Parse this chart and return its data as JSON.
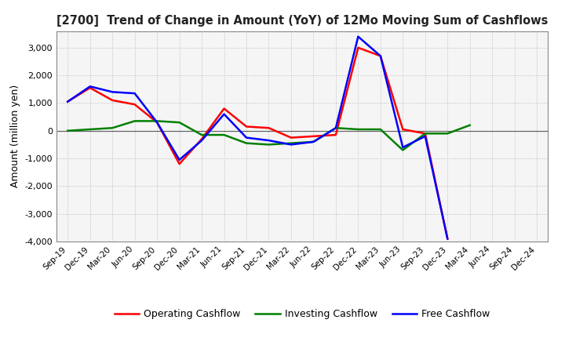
{
  "title": "[2700]  Trend of Change in Amount (YoY) of 12Mo Moving Sum of Cashflows",
  "ylabel": "Amount (million yen)",
  "x_labels": [
    "Sep-19",
    "Dec-19",
    "Mar-20",
    "Jun-20",
    "Sep-20",
    "Dec-20",
    "Mar-21",
    "Jun-21",
    "Sep-21",
    "Dec-21",
    "Mar-22",
    "Jun-22",
    "Sep-22",
    "Dec-22",
    "Mar-23",
    "Jun-23",
    "Sep-23",
    "Dec-23",
    "Mar-24",
    "Jun-24",
    "Sep-24",
    "Dec-24"
  ],
  "operating": [
    1050,
    1550,
    1100,
    950,
    300,
    -1200,
    -300,
    800,
    150,
    100,
    -250,
    -200,
    -150,
    3000,
    2700,
    50,
    -100,
    -3900,
    null,
    null,
    null,
    null
  ],
  "investing": [
    0,
    50,
    100,
    350,
    350,
    300,
    -150,
    -150,
    -450,
    -500,
    -450,
    -400,
    100,
    50,
    50,
    -700,
    -100,
    -100,
    200,
    null,
    null,
    null
  ],
  "free": [
    1050,
    1600,
    1400,
    1350,
    300,
    -1050,
    -350,
    600,
    -250,
    -350,
    -500,
    -400,
    100,
    3400,
    2700,
    -600,
    -200,
    -3900,
    null,
    null,
    null,
    null
  ],
  "operating_color": "#ff0000",
  "investing_color": "#008000",
  "free_color": "#0000ff",
  "ylim": [
    -4000,
    3600
  ],
  "yticks": [
    -4000,
    -3000,
    -2000,
    -1000,
    0,
    1000,
    2000,
    3000
  ],
  "background_color": "#ffffff",
  "plot_bg_color": "#f5f5f5",
  "grid_color": "#bbbbbb"
}
